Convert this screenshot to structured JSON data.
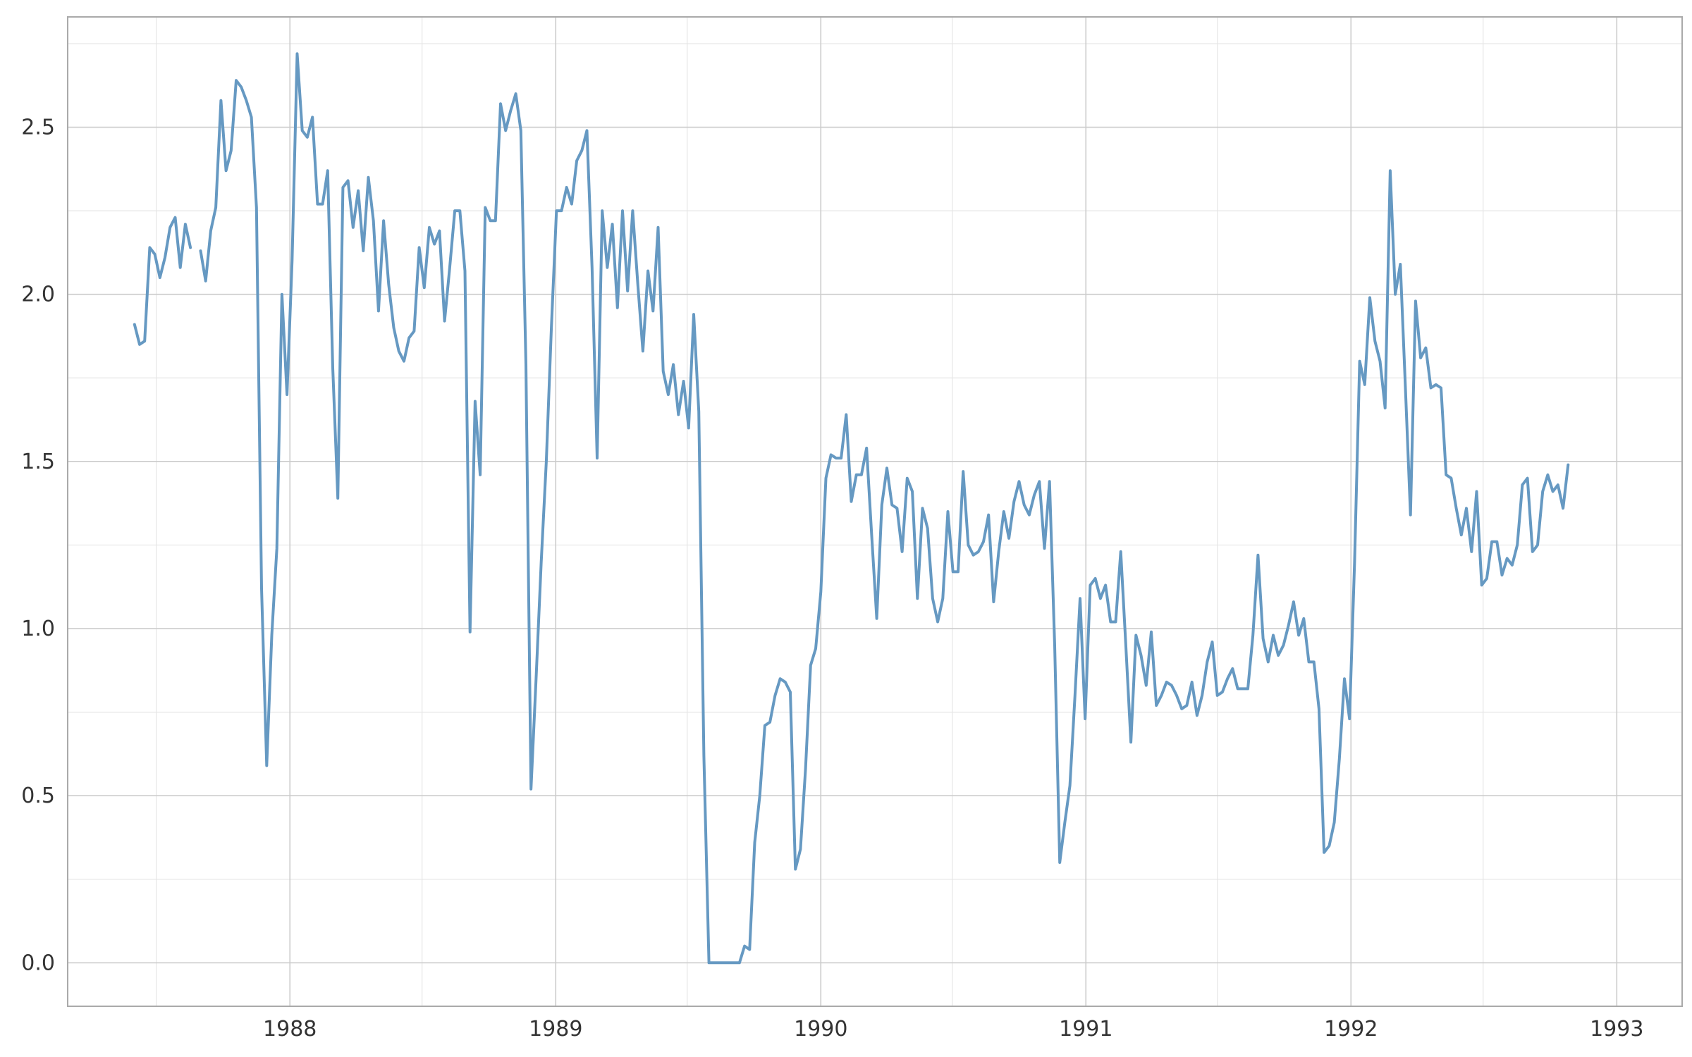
{
  "chart_data": {
    "type": "line",
    "title": "",
    "xlabel": "",
    "ylabel": "",
    "x_start": "1987-06-01",
    "x_step": "week",
    "xlim": [
      "1987-03-01",
      "1993-04-01"
    ],
    "ylim": [
      -0.13,
      2.83
    ],
    "x_major_ticks": [
      "1988",
      "1989",
      "1990",
      "1991",
      "1992",
      "1993"
    ],
    "x_major_tick_dates": [
      "1988-01-01",
      "1989-01-01",
      "1990-01-01",
      "1991-01-01",
      "1992-01-01",
      "1993-01-01"
    ],
    "x_minor_tick_dates": [
      "1987-07-01",
      "1988-07-01",
      "1989-07-01",
      "1990-07-01",
      "1991-07-01",
      "1992-07-01"
    ],
    "y_major_ticks": [
      0.0,
      0.5,
      1.0,
      1.5,
      2.0,
      2.5
    ],
    "y_tick_labels": [
      "0.0",
      "0.5",
      "1.0",
      "1.5",
      "2.0",
      "2.5"
    ],
    "y_minor_ticks": [
      0.25,
      0.75,
      1.25,
      1.75,
      2.25,
      2.75
    ],
    "grid": true,
    "legend": "none",
    "colors": {
      "line": "#6699c2",
      "major_grid": "#cccccc",
      "minor_grid": "#e6e6e6",
      "border": "#aaaaaa"
    },
    "series": [
      {
        "values": [
          1.91,
          1.85,
          1.86,
          2.14,
          2.12,
          2.05,
          2.11,
          2.2,
          2.23,
          2.08,
          2.21,
          2.14,
          null,
          2.13,
          2.04,
          2.19,
          2.26,
          2.58,
          2.37,
          2.43,
          2.64,
          2.62,
          2.58,
          2.53,
          2.26,
          1.12,
          0.59,
          0.98,
          1.24,
          2.0,
          1.7,
          2.1,
          2.72,
          2.49,
          2.47,
          2.53,
          2.27,
          2.27,
          2.37,
          1.78,
          1.39,
          2.32,
          2.34,
          2.2,
          2.31,
          2.13,
          2.35,
          2.22,
          1.95,
          2.22,
          2.03,
          1.9,
          1.83,
          1.8,
          1.87,
          1.89,
          2.14,
          2.02,
          2.2,
          2.15,
          2.19,
          1.92,
          2.08,
          2.25,
          2.25,
          2.07,
          0.99,
          1.68,
          1.46,
          2.26,
          2.22,
          2.22,
          2.57,
          2.49,
          2.55,
          2.6,
          2.49,
          1.79,
          0.52,
          0.85,
          1.2,
          1.5,
          1.9,
          2.25,
          2.25,
          2.32,
          2.27,
          2.4,
          2.43,
          2.49,
          2.08,
          1.51,
          2.25,
          2.08,
          2.21,
          1.96,
          2.25,
          2.01,
          2.25,
          2.03,
          1.83,
          2.07,
          1.95,
          2.2,
          1.77,
          1.7,
          1.79,
          1.64,
          1.74,
          1.6,
          1.94,
          1.65,
          0.62,
          0.0,
          0.0,
          0.0,
          0.0,
          0.0,
          0.0,
          0.0,
          0.05,
          0.04,
          0.36,
          0.5,
          0.71,
          0.72,
          0.8,
          0.85,
          0.84,
          0.81,
          0.28,
          0.34,
          0.58,
          0.89,
          0.94,
          1.11,
          1.45,
          1.52,
          1.51,
          1.51,
          1.64,
          1.38,
          1.46,
          1.46,
          1.54,
          1.28,
          1.03,
          1.37,
          1.48,
          1.37,
          1.36,
          1.23,
          1.45,
          1.41,
          1.09,
          1.36,
          1.3,
          1.09,
          1.02,
          1.09,
          1.35,
          1.17,
          1.17,
          1.47,
          1.25,
          1.22,
          1.23,
          1.26,
          1.34,
          1.08,
          1.23,
          1.35,
          1.27,
          1.38,
          1.44,
          1.37,
          1.34,
          1.4,
          1.44,
          1.24,
          1.44,
          0.95,
          0.3,
          0.42,
          0.53,
          0.8,
          1.09,
          0.73,
          1.13,
          1.15,
          1.09,
          1.13,
          1.02,
          1.02,
          1.23,
          0.95,
          0.66,
          0.98,
          0.92,
          0.83,
          0.99,
          0.77,
          0.8,
          0.84,
          0.83,
          0.8,
          0.76,
          0.77,
          0.84,
          0.74,
          0.8,
          0.9,
          0.96,
          0.8,
          0.81,
          0.85,
          0.88,
          0.82,
          0.82,
          0.82,
          0.98,
          1.22,
          0.97,
          0.9,
          0.98,
          0.92,
          0.95,
          1.01,
          1.08,
          0.98,
          1.03,
          0.9,
          0.9,
          0.76,
          0.33,
          0.35,
          0.42,
          0.61,
          0.85,
          0.73,
          1.2,
          1.8,
          1.73,
          1.99,
          1.86,
          1.8,
          1.66,
          2.37,
          2.0,
          2.09,
          1.72,
          1.34,
          1.98,
          1.81,
          1.84,
          1.72,
          1.73,
          1.72,
          1.46,
          1.45,
          1.36,
          1.28,
          1.36,
          1.23,
          1.41,
          1.13,
          1.15,
          1.26,
          1.26,
          1.16,
          1.21,
          1.19,
          1.25,
          1.43,
          1.45,
          1.23,
          1.25,
          1.41,
          1.46,
          1.41,
          1.43,
          1.36,
          1.49
        ]
      }
    ]
  }
}
